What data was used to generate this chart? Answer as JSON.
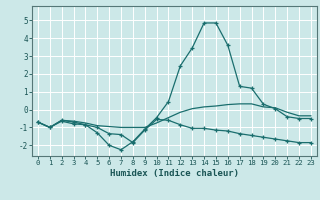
{
  "title": "",
  "xlabel": "Humidex (Indice chaleur)",
  "xlim": [
    -0.5,
    23.5
  ],
  "ylim": [
    -2.6,
    5.8
  ],
  "yticks": [
    -2,
    -1,
    0,
    1,
    2,
    3,
    4,
    5
  ],
  "xticks": [
    0,
    1,
    2,
    3,
    4,
    5,
    6,
    7,
    8,
    9,
    10,
    11,
    12,
    13,
    14,
    15,
    16,
    17,
    18,
    19,
    20,
    21,
    22,
    23
  ],
  "background_color": "#cce8e8",
  "grid_color": "#ffffff",
  "line_color": "#1a6e6e",
  "series1_x": [
    0,
    1,
    2,
    3,
    4,
    5,
    6,
    7,
    8,
    9,
    10,
    11,
    12,
    13,
    14,
    15,
    16,
    17,
    18,
    19,
    20,
    21,
    22,
    23
  ],
  "series1_y": [
    -0.7,
    -1.0,
    -0.6,
    -0.7,
    -0.85,
    -1.3,
    -2.0,
    -2.25,
    -1.8,
    -1.1,
    -0.45,
    0.45,
    2.45,
    3.45,
    4.85,
    4.85,
    3.6,
    1.3,
    1.2,
    0.3,
    0.05,
    -0.4,
    -0.5,
    -0.5
  ],
  "series2_x": [
    0,
    1,
    2,
    3,
    4,
    5,
    6,
    7,
    8,
    9,
    10,
    11,
    12,
    13,
    14,
    15,
    16,
    17,
    18,
    19,
    20,
    21,
    22,
    23
  ],
  "series2_y": [
    -0.7,
    -1.0,
    -0.6,
    -0.65,
    -0.75,
    -0.9,
    -0.95,
    -1.0,
    -1.0,
    -1.0,
    -0.75,
    -0.45,
    -0.15,
    0.05,
    0.15,
    0.2,
    0.28,
    0.32,
    0.32,
    0.15,
    0.1,
    -0.15,
    -0.35,
    -0.35
  ],
  "series3_x": [
    0,
    1,
    2,
    3,
    4,
    5,
    6,
    7,
    8,
    9,
    10,
    11,
    12,
    13,
    14,
    15,
    16,
    17,
    18,
    19,
    20,
    21,
    22,
    23
  ],
  "series3_y": [
    -0.7,
    -1.0,
    -0.65,
    -0.8,
    -0.85,
    -1.0,
    -1.35,
    -1.4,
    -1.85,
    -1.15,
    -0.55,
    -0.6,
    -0.85,
    -1.05,
    -1.05,
    -1.15,
    -1.2,
    -1.35,
    -1.45,
    -1.55,
    -1.65,
    -1.75,
    -1.85,
    -1.85
  ]
}
